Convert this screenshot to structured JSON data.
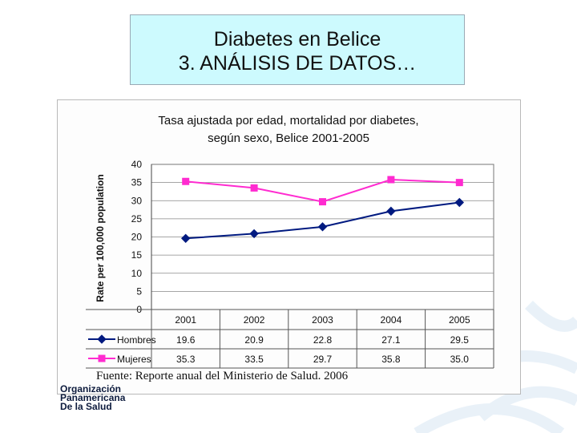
{
  "slide": {
    "title_line1": "Diabetes en Belice",
    "title_line2": "3. ANÁLISIS DE DATOS…",
    "source": "Fuente: Reporte anual del Ministerio de Salud. 2006",
    "org_lines": [
      "Organización",
      "Panamericana",
      "De la Salud"
    ]
  },
  "colors": {
    "hombres": "#001a80",
    "mujeres": "#ff2bd0",
    "title_bg": "#cdfafe"
  },
  "chart_data": {
    "type": "line",
    "title_line1": "Tasa ajustada por edad, mortalidad por diabetes,",
    "title_line2": "según sexo, Belice 2001-2005",
    "ylabel": "Rate per 100,000 population",
    "xlabel": "",
    "categories": [
      "2001",
      "2002",
      "2003",
      "2004",
      "2005"
    ],
    "ylim": [
      0,
      40
    ],
    "yticks": [
      0,
      5,
      10,
      15,
      20,
      25,
      30,
      35,
      40
    ],
    "grid": true,
    "legend": "data-table-below",
    "series": [
      {
        "name": "Hombres",
        "values": [
          19.6,
          20.9,
          22.8,
          27.1,
          29.5
        ],
        "labels": [
          "19.6",
          "20.9",
          "22.8",
          "27.1",
          "29.5"
        ],
        "marker": "diamond"
      },
      {
        "name": "Mujeres",
        "values": [
          35.3,
          33.5,
          29.7,
          35.8,
          35.0
        ],
        "labels": [
          "35.3",
          "33.5",
          "29.7",
          "35.8",
          "35.0"
        ],
        "marker": "square"
      }
    ]
  }
}
